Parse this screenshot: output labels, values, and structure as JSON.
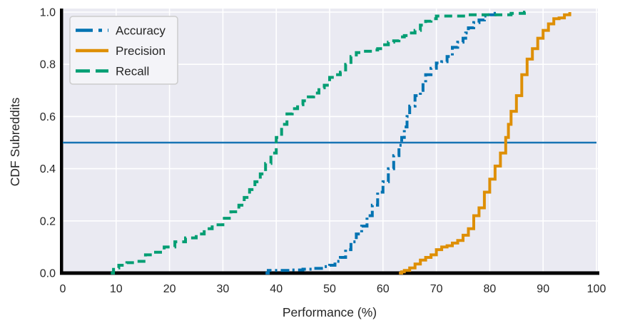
{
  "figure": {
    "background": "#ffffff",
    "plot_background": "#eaeaf2",
    "grid_color": "#ffffff",
    "spine_color": "#000000",
    "text_color": "#262626",
    "legend_face": "#f4f4f8",
    "legend_edge": "#cccccc"
  },
  "chart_data": {
    "type": "line",
    "subtype": "cdf-step",
    "title": "",
    "xlabel": "Performance (%)",
    "ylabel": "CDF Subreddits",
    "xlim": [
      0,
      100
    ],
    "ylim": [
      0.0,
      1.0
    ],
    "xticks": [
      0,
      10,
      20,
      30,
      40,
      50,
      60,
      70,
      80,
      90,
      100
    ],
    "yticks": [
      0.0,
      0.2,
      0.4,
      0.6,
      0.8,
      1.0
    ],
    "grid": "on",
    "legend": {
      "position": "upper-left",
      "entries": [
        "Accuracy",
        "Precision",
        "Recall"
      ]
    },
    "reference_line": {
      "y": 0.5,
      "color": "#1774b4"
    },
    "series": [
      {
        "name": "Accuracy",
        "color": "#0173b2",
        "linestyle": "dashdot",
        "points": [
          [
            38,
            0
          ],
          [
            38.5,
            0.01
          ],
          [
            41,
            0.01
          ],
          [
            43,
            0.012
          ],
          [
            45,
            0.015
          ],
          [
            47,
            0.018
          ],
          [
            49,
            0.025
          ],
          [
            50,
            0.03
          ],
          [
            51,
            0.045
          ],
          [
            52,
            0.06
          ],
          [
            53,
            0.09
          ],
          [
            54,
            0.12
          ],
          [
            55,
            0.15
          ],
          [
            56,
            0.18
          ],
          [
            57,
            0.22
          ],
          [
            58,
            0.26
          ],
          [
            59,
            0.31
          ],
          [
            60,
            0.35
          ],
          [
            61,
            0.4
          ],
          [
            62,
            0.45
          ],
          [
            63,
            0.49
          ],
          [
            63.5,
            0.52
          ],
          [
            64,
            0.56
          ],
          [
            64.5,
            0.6
          ],
          [
            65,
            0.64
          ],
          [
            66,
            0.68
          ],
          [
            67,
            0.7
          ],
          [
            67.5,
            0.73
          ],
          [
            68,
            0.76
          ],
          [
            69,
            0.785
          ],
          [
            70,
            0.805
          ],
          [
            71,
            0.81
          ],
          [
            72,
            0.83
          ],
          [
            73,
            0.865
          ],
          [
            74,
            0.885
          ],
          [
            75,
            0.9
          ],
          [
            75.5,
            0.92
          ],
          [
            76,
            0.94
          ],
          [
            77,
            0.96
          ],
          [
            78,
            0.97
          ],
          [
            79,
            0.985
          ],
          [
            80,
            0.99
          ],
          [
            81,
            0.995
          ],
          [
            81.5,
            1.0
          ]
        ]
      },
      {
        "name": "Precision",
        "color": "#de8f05",
        "linestyle": "solid",
        "points": [
          [
            63,
            0
          ],
          [
            63.5,
            0.005
          ],
          [
            64,
            0.01
          ],
          [
            65,
            0.02
          ],
          [
            66,
            0.035
          ],
          [
            67,
            0.05
          ],
          [
            68,
            0.06
          ],
          [
            69,
            0.07
          ],
          [
            70,
            0.09
          ],
          [
            71,
            0.1
          ],
          [
            72,
            0.105
          ],
          [
            73,
            0.115
          ],
          [
            74,
            0.125
          ],
          [
            75,
            0.145
          ],
          [
            76,
            0.17
          ],
          [
            77,
            0.22
          ],
          [
            78,
            0.25
          ],
          [
            79,
            0.31
          ],
          [
            80,
            0.36
          ],
          [
            81,
            0.41
          ],
          [
            82,
            0.46
          ],
          [
            83,
            0.52
          ],
          [
            83.5,
            0.57
          ],
          [
            84,
            0.62
          ],
          [
            85,
            0.68
          ],
          [
            86,
            0.76
          ],
          [
            87,
            0.82
          ],
          [
            88,
            0.86
          ],
          [
            89,
            0.9
          ],
          [
            90,
            0.93
          ],
          [
            91,
            0.955
          ],
          [
            92,
            0.975
          ],
          [
            93,
            0.978
          ],
          [
            94,
            0.99
          ],
          [
            95,
            1.0
          ]
        ]
      },
      {
        "name": "Recall",
        "color": "#029e73",
        "linestyle": "dashed",
        "points": [
          [
            9,
            0
          ],
          [
            9.5,
            0.02
          ],
          [
            10.5,
            0.03
          ],
          [
            12,
            0.04
          ],
          [
            14,
            0.045
          ],
          [
            15.5,
            0.07
          ],
          [
            17,
            0.08
          ],
          [
            19,
            0.1
          ],
          [
            21,
            0.12
          ],
          [
            23,
            0.135
          ],
          [
            25,
            0.15
          ],
          [
            26.5,
            0.17
          ],
          [
            28,
            0.185
          ],
          [
            30,
            0.21
          ],
          [
            31.5,
            0.235
          ],
          [
            33,
            0.26
          ],
          [
            34,
            0.29
          ],
          [
            35,
            0.32
          ],
          [
            36,
            0.35
          ],
          [
            37,
            0.38
          ],
          [
            38,
            0.42
          ],
          [
            39,
            0.46
          ],
          [
            40,
            0.52
          ],
          [
            41,
            0.57
          ],
          [
            42,
            0.61
          ],
          [
            43,
            0.63
          ],
          [
            44,
            0.645
          ],
          [
            45,
            0.66
          ],
          [
            46,
            0.675
          ],
          [
            47,
            0.69
          ],
          [
            48,
            0.71
          ],
          [
            49,
            0.72
          ],
          [
            50,
            0.75
          ],
          [
            51,
            0.76
          ],
          [
            52,
            0.77
          ],
          [
            53,
            0.8
          ],
          [
            54,
            0.83
          ],
          [
            55,
            0.845
          ],
          [
            56,
            0.85
          ],
          [
            58,
            0.855
          ],
          [
            59,
            0.86
          ],
          [
            60,
            0.875
          ],
          [
            61,
            0.885
          ],
          [
            62,
            0.89
          ],
          [
            63,
            0.905
          ],
          [
            64,
            0.91
          ],
          [
            65,
            0.92
          ],
          [
            66,
            0.93
          ],
          [
            67,
            0.95
          ],
          [
            68,
            0.965
          ],
          [
            69,
            0.975
          ],
          [
            70,
            0.985
          ],
          [
            73,
            0.985
          ],
          [
            76,
            0.99
          ],
          [
            80,
            0.99
          ],
          [
            84,
            0.995
          ],
          [
            86,
            0.995
          ],
          [
            86.5,
            1.0
          ],
          [
            87,
            1.0
          ]
        ]
      }
    ]
  }
}
